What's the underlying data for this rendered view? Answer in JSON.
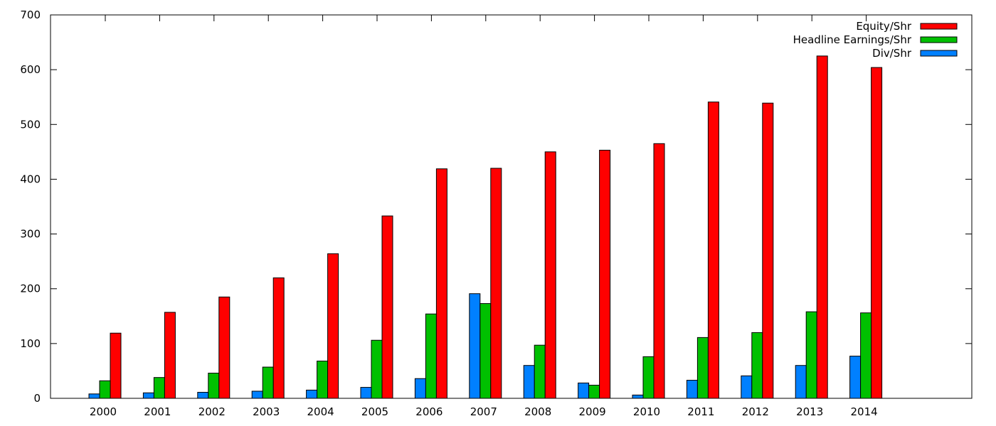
{
  "colors": {
    "equity": "#ff0000",
    "earnings": "#00c000",
    "dividend": "#0080ff"
  },
  "chart_data": {
    "type": "bar",
    "title": "",
    "xlabel": "",
    "ylabel": "",
    "ylim": [
      0,
      700
    ],
    "yticks": [
      0,
      100,
      200,
      300,
      400,
      500,
      600,
      700
    ],
    "grid": false,
    "legend_position": "top-right",
    "categories": [
      "2000",
      "2001",
      "2002",
      "2003",
      "2004",
      "2005",
      "2006",
      "2007",
      "2008",
      "2009",
      "2010",
      "2011",
      "2012",
      "2013",
      "2014"
    ],
    "series": [
      {
        "name": "Div/Shr",
        "color_key": "dividend",
        "values": [
          8,
          10,
          11,
          13,
          15,
          20,
          36,
          191,
          60,
          28,
          6,
          33,
          41,
          60,
          77
        ]
      },
      {
        "name": "Headline Earnings/Shr",
        "color_key": "earnings",
        "values": [
          32,
          38,
          46,
          57,
          68,
          106,
          154,
          173,
          97,
          24,
          76,
          111,
          120,
          158,
          156
        ]
      },
      {
        "name": "Equity/Shr",
        "color_key": "equity",
        "values": [
          119,
          157,
          185,
          220,
          264,
          333,
          419,
          420,
          450,
          453,
          465,
          541,
          539,
          625,
          604
        ]
      }
    ],
    "legend_order": [
      "Equity/Shr",
      "Headline Earnings/Shr",
      "Div/Shr"
    ]
  }
}
